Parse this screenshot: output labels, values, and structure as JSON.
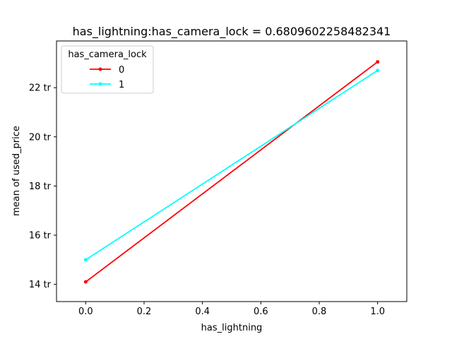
{
  "chart_data": {
    "type": "line",
    "title": "has_lightning:has_camera_lock = 0.6809602258482341",
    "xlabel": "has_lightning",
    "ylabel": "mean of used_price",
    "xlim": [
      -0.1,
      1.1
    ],
    "ylim": [
      13.3,
      23.9
    ],
    "x_ticks": [
      0.0,
      0.2,
      0.4,
      0.6,
      0.8,
      1.0
    ],
    "x_tick_labels": [
      "0.0",
      "0.2",
      "0.4",
      "0.6",
      "0.8",
      "1.0"
    ],
    "y_ticks": [
      14,
      16,
      18,
      20,
      22
    ],
    "y_tick_labels": [
      "14 tr",
      "16 tr",
      "18 tr",
      "20 tr",
      "22 tr"
    ],
    "grid": false,
    "legend": {
      "title": "has_camera_lock",
      "placement": "top-left"
    },
    "series": [
      {
        "name": "0",
        "color": "#ff0000",
        "x": [
          0,
          1
        ],
        "y": [
          14.1,
          23.05
        ]
      },
      {
        "name": "1",
        "color": "#00ffff",
        "x": [
          0,
          1
        ],
        "y": [
          15.0,
          22.7
        ]
      }
    ]
  }
}
